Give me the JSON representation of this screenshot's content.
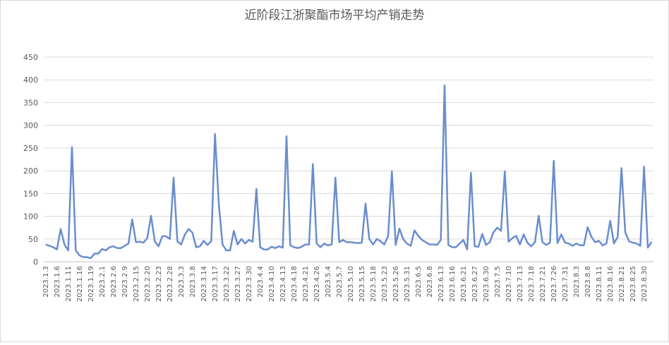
{
  "chart_data": {
    "type": "line",
    "title": "近阶段江浙聚酯市场平均产销走势",
    "categories": [
      "2023.1.3",
      null,
      null,
      "2023.1.6",
      null,
      null,
      "2023.1.11",
      null,
      null,
      "2023.1.16",
      null,
      null,
      "2023.1.19",
      null,
      null,
      "2023.2.1",
      null,
      null,
      "2023.2.6",
      null,
      null,
      "2023.2.9",
      null,
      null,
      "2023.2.15",
      null,
      null,
      "2023.2.20",
      null,
      null,
      "2023.2.23",
      null,
      null,
      "2023.2.28",
      null,
      null,
      "2023.3.3",
      null,
      null,
      "2023.3.8",
      null,
      null,
      "2023.3.14",
      null,
      null,
      "2023.3.17",
      null,
      null,
      "2023.3.22",
      null,
      null,
      "2023.3.27",
      null,
      null,
      "2023.3.30",
      null,
      null,
      "2023.4.4",
      null,
      null,
      "2023.4.10",
      null,
      null,
      "2023.4.13",
      null,
      null,
      "2023.4.18",
      null,
      null,
      "2023.4.21",
      null,
      null,
      "2023.4.26",
      null,
      null,
      "2023.5.4",
      null,
      null,
      "2023.5.7",
      null,
      null,
      "2023.5.10",
      null,
      null,
      "2023.5.15",
      null,
      null,
      "2023.5.18",
      null,
      null,
      "2023.5.23",
      null,
      null,
      "2023.5.26",
      null,
      null,
      "2023.5.31",
      null,
      null,
      "2023.6.5",
      null,
      null,
      "2023.6.8",
      null,
      null,
      "2023.6.13",
      null,
      null,
      "2023.6.16",
      null,
      null,
      "2023.6.21",
      null,
      null,
      "2023.6.27",
      null,
      null,
      "2023.6.30",
      null,
      null,
      "2023.7.5",
      null,
      null,
      "2023.7.10",
      null,
      null,
      "2023.7.13",
      null,
      null,
      "2023.7.18",
      null,
      null,
      "2023.7.21",
      null,
      null,
      "2023.7.26",
      null,
      null,
      "2023.7.31",
      null,
      null,
      "2023.8.3",
      null,
      null,
      "2023.8.8",
      null,
      null,
      "2023.8.11",
      null,
      null,
      "2023.8.16",
      null,
      null,
      "2023.8.21",
      null,
      null,
      "2023.8.25",
      null,
      null,
      "2023.8.30",
      null,
      null
    ],
    "values": [
      38,
      35,
      32,
      27,
      72,
      38,
      25,
      252,
      25,
      14,
      10,
      10,
      8,
      18,
      18,
      28,
      25,
      32,
      34,
      30,
      30,
      35,
      40,
      93,
      43,
      44,
      42,
      52,
      101,
      45,
      34,
      56,
      56,
      50,
      185,
      45,
      38,
      60,
      72,
      64,
      32,
      34,
      46,
      37,
      45,
      281,
      128,
      38,
      25,
      25,
      68,
      38,
      50,
      40,
      48,
      44,
      160,
      32,
      27,
      27,
      33,
      30,
      34,
      31,
      276,
      36,
      32,
      30,
      33,
      38,
      38,
      215,
      40,
      32,
      40,
      36,
      38,
      185,
      43,
      48,
      43,
      43,
      42,
      41,
      42,
      128,
      50,
      38,
      50,
      45,
      38,
      57,
      199,
      37,
      73,
      50,
      40,
      35,
      69,
      57,
      48,
      43,
      38,
      38,
      37,
      48,
      388,
      37,
      32,
      32,
      40,
      48,
      27,
      196,
      34,
      33,
      61,
      37,
      43,
      65,
      75,
      68,
      199,
      44,
      52,
      57,
      38,
      60,
      42,
      34,
      43,
      101,
      43,
      37,
      42,
      222,
      41,
      60,
      42,
      40,
      35,
      40,
      36,
      36,
      76,
      55,
      43,
      46,
      36,
      40,
      90,
      40,
      55,
      206,
      65,
      45,
      42,
      40,
      35,
      209,
      31,
      44
    ],
    "color": "#6a8dcd",
    "ylim": [
      0,
      450
    ],
    "yticks": [
      0,
      50,
      100,
      150,
      200,
      250,
      300,
      350,
      400,
      450
    ],
    "grid": true
  }
}
